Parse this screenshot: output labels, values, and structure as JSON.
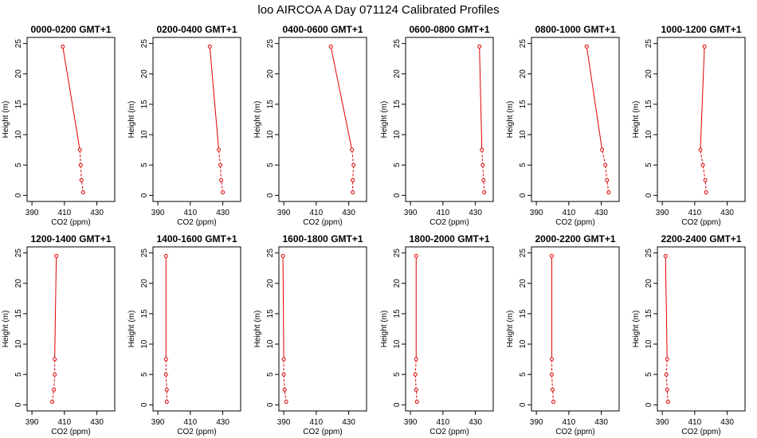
{
  "title": "loo AIRCOA A  Day 071124  Calibrated Profiles",
  "chart_data": {
    "type": "line",
    "title": "loo AIRCOA A  Day 071124  Calibrated Profiles",
    "xlabel": "CO2 (ppm)",
    "ylabel": "Height (m)",
    "xlim": [
      387,
      441
    ],
    "ylim": [
      -1,
      26
    ],
    "xticks": [
      390,
      410,
      430
    ],
    "yticks": [
      0,
      5,
      10,
      15,
      20,
      25
    ],
    "color": "#e00000",
    "heights": [
      0.5,
      2.5,
      5.0,
      7.5,
      24.5
    ],
    "panels": [
      {
        "title": "0000-0200 GMT+1",
        "co2": [
          421.5,
          420.5,
          420.0,
          419.5,
          409.0
        ]
      },
      {
        "title": "0200-0400 GMT+1",
        "co2": [
          430.0,
          429.0,
          428.5,
          427.5,
          422.0
        ]
      },
      {
        "title": "0400-0600 GMT+1",
        "co2": [
          432.5,
          432.5,
          433.0,
          432.0,
          419.0
        ]
      },
      {
        "title": "0600-0800 GMT+1",
        "co2": [
          435.5,
          435.0,
          434.5,
          434.0,
          432.5
        ]
      },
      {
        "title": "0800-1000 GMT+1",
        "co2": [
          434.5,
          433.5,
          432.5,
          430.5,
          421.0
        ]
      },
      {
        "title": "1000-1200 GMT+1",
        "co2": [
          417.0,
          416.5,
          415.0,
          413.5,
          416.0
        ]
      },
      {
        "title": "1200-1400 GMT+1",
        "co2": [
          402.5,
          403.5,
          404.0,
          404.0,
          405.0
        ]
      },
      {
        "title": "1400-1600 GMT+1",
        "co2": [
          395.5,
          395.5,
          395.0,
          395.0,
          395.0
        ]
      },
      {
        "title": "1600-1800 GMT+1",
        "co2": [
          391.5,
          390.5,
          390.0,
          390.0,
          389.5
        ]
      },
      {
        "title": "1800-2000 GMT+1",
        "co2": [
          394.0,
          393.5,
          393.0,
          393.5,
          393.5
        ]
      },
      {
        "title": "2000-2200 GMT+1",
        "co2": [
          400.5,
          400.0,
          399.5,
          399.5,
          399.5
        ]
      },
      {
        "title": "2200-2400 GMT+1",
        "co2": [
          393.5,
          393.0,
          392.5,
          393.0,
          392.0
        ]
      }
    ]
  }
}
